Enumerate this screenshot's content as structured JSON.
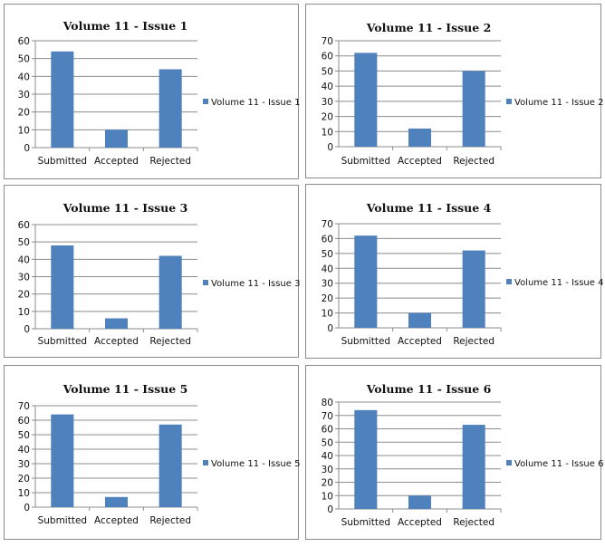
{
  "colors": {
    "bar": "#4f81bd",
    "gridline": "#8c8c8c",
    "axis": "#8c8c8c",
    "border": "#8c8c8c"
  },
  "chart_data": [
    {
      "type": "bar",
      "title": "Volume 11 - Issue  1",
      "categories": [
        "Submitted",
        "Accepted",
        "Rejected"
      ],
      "series": [
        {
          "name": "Volume 11 - Issue 1",
          "values": [
            54,
            10,
            44
          ]
        }
      ],
      "ylim": [
        0,
        60
      ],
      "yticks": [
        0,
        10,
        20,
        30,
        40,
        50,
        60
      ],
      "grid": true,
      "legend": "right"
    },
    {
      "type": "bar",
      "title": "Volume 11 - Issue  2",
      "categories": [
        "Submitted",
        "Accepted",
        "Rejected"
      ],
      "series": [
        {
          "name": "Volume 11 - Issue 2",
          "values": [
            62,
            12,
            50
          ]
        }
      ],
      "ylim": [
        0,
        70
      ],
      "yticks": [
        0,
        10,
        20,
        30,
        40,
        50,
        60,
        70
      ],
      "grid": true,
      "legend": "right"
    },
    {
      "type": "bar",
      "title": "Volume 11 - Issue  3",
      "categories": [
        "Submitted",
        "Accepted",
        "Rejected"
      ],
      "series": [
        {
          "name": "Volume 11 - Issue 3",
          "values": [
            48,
            6,
            42
          ]
        }
      ],
      "ylim": [
        0,
        60
      ],
      "yticks": [
        0,
        10,
        20,
        30,
        40,
        50,
        60
      ],
      "grid": true,
      "legend": "right"
    },
    {
      "type": "bar",
      "title": "Volume 11 - Issue  4",
      "categories": [
        "Submitted",
        "Accepted",
        "Rejected"
      ],
      "series": [
        {
          "name": "Volume 11 - Issue 4",
          "values": [
            62,
            10,
            52
          ]
        }
      ],
      "ylim": [
        0,
        70
      ],
      "yticks": [
        0,
        10,
        20,
        30,
        40,
        50,
        60,
        70
      ],
      "grid": true,
      "legend": "right"
    },
    {
      "type": "bar",
      "title": "Volume 11 - Issue  5",
      "categories": [
        "Submitted",
        "Accepted",
        "Rejected"
      ],
      "series": [
        {
          "name": "Volume 11 - Issue 5",
          "values": [
            64,
            7,
            57
          ]
        }
      ],
      "ylim": [
        0,
        70
      ],
      "yticks": [
        0,
        10,
        20,
        30,
        40,
        50,
        60,
        70
      ],
      "grid": true,
      "legend": "right"
    },
    {
      "type": "bar",
      "title": "Volume 11 - Issue  6",
      "categories": [
        "Submitted",
        "Accepted",
        "Rejected"
      ],
      "series": [
        {
          "name": "Volume 11 - Issue 6",
          "values": [
            74,
            10,
            63
          ]
        }
      ],
      "ylim": [
        0,
        80
      ],
      "yticks": [
        0,
        10,
        20,
        30,
        40,
        50,
        60,
        70,
        80
      ],
      "grid": true,
      "legend": "right"
    }
  ]
}
